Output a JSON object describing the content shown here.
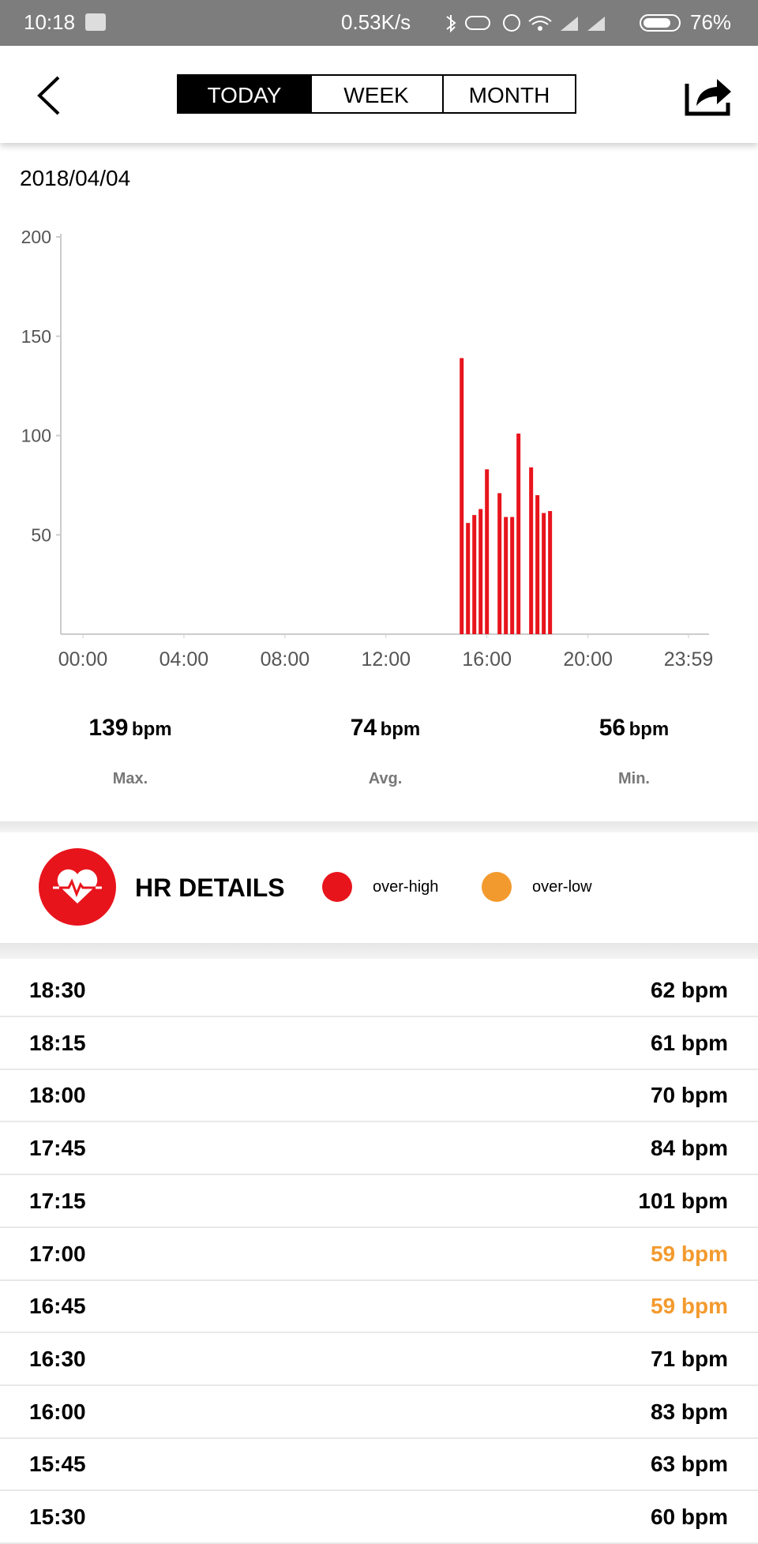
{
  "status_bar": {
    "time": "10:18",
    "speed": "0.53K/s",
    "battery": "76%"
  },
  "tabs": [
    "TODAY",
    "WEEK",
    "MONTH"
  ],
  "date": "2018/04/04",
  "chart_data": {
    "type": "bar",
    "x": [
      900,
      915,
      930,
      945,
      960,
      990,
      1005,
      1020,
      1035,
      1065,
      1080,
      1095,
      1110
    ],
    "values": [
      139,
      56,
      60,
      63,
      83,
      71,
      59,
      59,
      101,
      84,
      70,
      61,
      62
    ],
    "color": "#e8141c",
    "xlim": [
      0,
      1439
    ],
    "xticks": [
      {
        "value": 0,
        "label": "00:00"
      },
      {
        "value": 240,
        "label": "04:00"
      },
      {
        "value": 480,
        "label": "08:00"
      },
      {
        "value": 720,
        "label": "12:00"
      },
      {
        "value": 960,
        "label": "16:00"
      },
      {
        "value": 1200,
        "label": "20:00"
      },
      {
        "value": 1439,
        "label": "23:59"
      }
    ],
    "ylim": [
      0,
      200
    ],
    "yticks": [
      50,
      100,
      150,
      200
    ]
  },
  "stats": [
    {
      "value": 139,
      "unit": "bpm",
      "label": "Max."
    },
    {
      "value": 74,
      "unit": "bpm",
      "label": "Avg."
    },
    {
      "value": 56,
      "unit": "bpm",
      "label": "Min."
    }
  ],
  "details": {
    "title": "HR DETAILS",
    "legend": [
      {
        "name": "over-high",
        "color": "#e8141c"
      },
      {
        "name": "over-low",
        "color": "#f39a2e"
      }
    ]
  },
  "rows": [
    {
      "time": "18:30",
      "hr": "62 bpm",
      "color": "#000000"
    },
    {
      "time": "18:15",
      "hr": "61 bpm",
      "color": "#000000"
    },
    {
      "time": "18:00",
      "hr": "70 bpm",
      "color": "#000000"
    },
    {
      "time": "17:45",
      "hr": "84 bpm",
      "color": "#000000"
    },
    {
      "time": "17:15",
      "hr": "101 bpm",
      "color": "#000000"
    },
    {
      "time": "17:00",
      "hr": "59 bpm",
      "color": "#f39a2e"
    },
    {
      "time": "16:45",
      "hr": "59 bpm",
      "color": "#f39a2e"
    },
    {
      "time": "16:30",
      "hr": "71 bpm",
      "color": "#000000"
    },
    {
      "time": "16:00",
      "hr": "83 bpm",
      "color": "#000000"
    },
    {
      "time": "15:45",
      "hr": "63 bpm",
      "color": "#000000"
    },
    {
      "time": "15:30",
      "hr": "60 bpm",
      "color": "#000000"
    }
  ]
}
